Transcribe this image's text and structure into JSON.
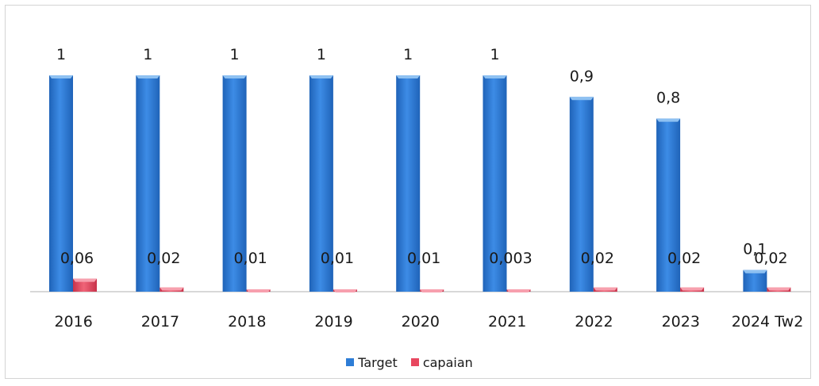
{
  "chart_data": {
    "type": "bar",
    "title": "",
    "xlabel": "",
    "ylabel": "",
    "categories": [
      "2016",
      "2017",
      "2018",
      "2019",
      "2020",
      "2021",
      "2022",
      "2023",
      "2024 Tw2"
    ],
    "series": [
      {
        "name": "Target",
        "values": [
          1,
          1,
          1,
          1,
          1,
          1,
          0.9,
          0.8,
          0.1
        ],
        "labels": [
          "1",
          "1",
          "1",
          "1",
          "1",
          "1",
          "0,9",
          "0,8",
          "0,1"
        ],
        "color": "#2e7dd6"
      },
      {
        "name": "capaian",
        "values": [
          0.06,
          0.02,
          0.01,
          0.01,
          0.01,
          0.003,
          0.02,
          0.02,
          0.02
        ],
        "labels": [
          "0,06",
          "0,02",
          "0,01",
          "0,01",
          "0,01",
          "0,003",
          "0,02",
          "0,02",
          "0,02"
        ],
        "color": "#e8475f"
      }
    ],
    "ylim": [
      0,
      1
    ],
    "grid": false,
    "legend_position": "bottom"
  }
}
